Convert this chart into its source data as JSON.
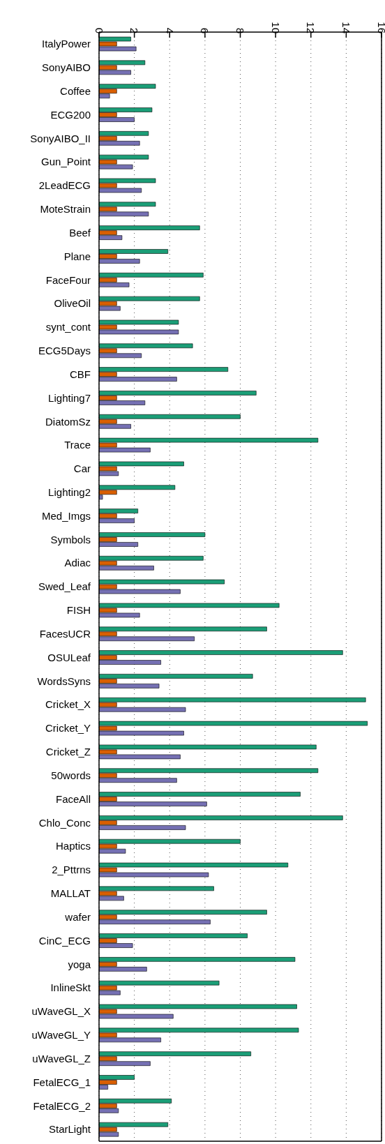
{
  "chart_data": {
    "type": "bar",
    "orientation": "horizontal",
    "categories": [
      "ItalyPower",
      "SonyAIBO",
      "Coffee",
      "ECG200",
      "SonyAIBO_II",
      "Gun_Point",
      "2LeadECG",
      "MoteStrain",
      "Beef",
      "Plane",
      "FaceFour",
      "OliveOil",
      "synt_cont",
      "ECG5Days",
      "CBF",
      "Lighting7",
      "DiatomSz",
      "Trace",
      "Car",
      "Lighting2",
      "Med_Imgs",
      "Symbols",
      "Adiac",
      "Swed_Leaf",
      "FISH",
      "FacesUCR",
      "OSULeaf",
      "WordsSyns",
      "Cricket_X",
      "Cricket_Y",
      "Cricket_Z",
      "50words",
      "FaceAll",
      "Chlo_Conc",
      "Haptics",
      "2_Pttrns",
      "MALLAT",
      "wafer",
      "CinC_ECG",
      "yoga",
      "InlineSkt",
      "uWaveGL_X",
      "uWaveGL_Y",
      "uWaveGL_Z",
      "FetalECG_1",
      "FetalECG_2",
      "StarLight"
    ],
    "series": [
      {
        "color": "#1b9e77",
        "values": [
          1.8,
          2.6,
          3.2,
          3.0,
          2.8,
          2.8,
          3.2,
          3.2,
          5.7,
          3.9,
          5.9,
          5.7,
          4.5,
          5.3,
          7.3,
          8.9,
          8.0,
          12.4,
          4.8,
          4.3,
          2.2,
          6.0,
          5.9,
          7.1,
          10.2,
          9.5,
          13.8,
          8.7,
          15.1,
          15.2,
          12.3,
          12.4,
          11.4,
          13.8,
          8.0,
          10.7,
          6.5,
          9.5,
          8.4,
          11.1,
          6.8,
          11.2,
          11.3,
          8.6,
          2.0,
          4.1,
          3.9
        ]
      },
      {
        "color": "#d95f02",
        "values": [
          1,
          1,
          1,
          1,
          1,
          1,
          1,
          1,
          1,
          1,
          1,
          1,
          1,
          1,
          1,
          1,
          1,
          1,
          1,
          1,
          1,
          1,
          1,
          1,
          1,
          1,
          1,
          1,
          1,
          1,
          1,
          1,
          1,
          1,
          1,
          1,
          1,
          1,
          1,
          1,
          1,
          1,
          1,
          1,
          1,
          1,
          1
        ]
      },
      {
        "color": "#7570b3",
        "values": [
          2.1,
          1.8,
          0.6,
          2.0,
          2.3,
          1.9,
          2.4,
          2.8,
          1.3,
          2.3,
          1.7,
          1.2,
          4.5,
          2.4,
          4.4,
          2.6,
          1.8,
          2.9,
          1.1,
          0.2,
          2.0,
          2.2,
          3.1,
          4.6,
          2.3,
          5.4,
          3.5,
          3.4,
          4.9,
          4.8,
          4.6,
          4.4,
          6.1,
          4.9,
          1.5,
          6.2,
          1.4,
          6.3,
          1.9,
          2.7,
          1.2,
          4.2,
          3.5,
          2.9,
          0.5,
          1.1,
          1.1
        ]
      }
    ],
    "xlim": [
      0,
      16
    ],
    "xticks": [
      0,
      2,
      4,
      6,
      8,
      10,
      12,
      14,
      16
    ],
    "grid": "x",
    "legend": false
  }
}
